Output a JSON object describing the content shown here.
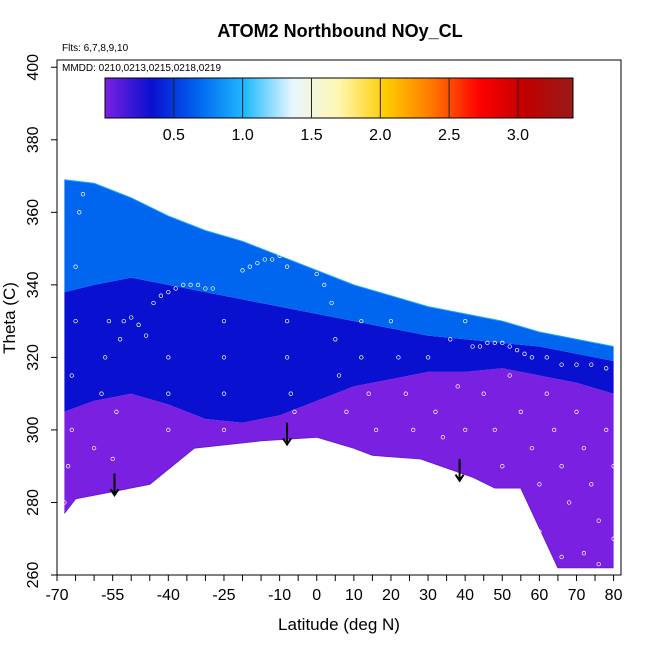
{
  "chart_data": {
    "type": "heatmap",
    "title": "ATOM2 Northbound NOy_CL",
    "flights_note": "Flts: 6,7,8,9,10",
    "dates_note": "MMDD: 0210,0213,0215,0218,0219",
    "xlabel": "Latitude (deg N)",
    "ylabel": "Theta (C)",
    "xlim": [
      -70,
      82
    ],
    "ylim": [
      260,
      402
    ],
    "x_ticks_major": [
      -70,
      -55,
      -40,
      -25,
      -10,
      0,
      10,
      20,
      30,
      40,
      50,
      60,
      70,
      80
    ],
    "x_ticks_major_labels": [
      "-70",
      "-55",
      "-40",
      "-25",
      "-10",
      "0",
      "10",
      "20",
      "30",
      "40",
      "50",
      "60",
      "70",
      "80"
    ],
    "x_ticks_minor": [
      -65,
      -60,
      -50,
      -45,
      -35,
      -30,
      -20,
      -15,
      -5,
      5,
      15,
      25,
      35,
      45,
      55,
      65,
      75
    ],
    "y_ticks": [
      260,
      280,
      300,
      320,
      340,
      360,
      380,
      400
    ],
    "y_tick_labels": [
      "260",
      "280",
      "300",
      "320",
      "340",
      "360",
      "380",
      "400"
    ],
    "colorbar": {
      "range": [
        0.0,
        3.4
      ],
      "ticks": [
        0.5,
        1.0,
        1.5,
        2.0,
        2.5,
        3.0
      ],
      "tick_labels": [
        "0.5",
        "1.0",
        "1.5",
        "2.0",
        "2.5",
        "3.0"
      ],
      "colors": [
        "#7a20e0",
        "#0a10d0",
        "#0066f0",
        "#22bbff",
        "#e8f6ff",
        "#fff7b0",
        "#ffcc00",
        "#ff7700",
        "#ff0000",
        "#c00000",
        "#9a1a1a"
      ]
    },
    "upper_boundary": [
      [
        -68,
        369
      ],
      [
        -60,
        368
      ],
      [
        -50,
        364
      ],
      [
        -40,
        359
      ],
      [
        -30,
        355
      ],
      [
        -20,
        352
      ],
      [
        -10,
        348
      ],
      [
        0,
        344
      ],
      [
        10,
        340
      ],
      [
        20,
        337
      ],
      [
        30,
        334
      ],
      [
        40,
        332
      ],
      [
        50,
        330
      ],
      [
        60,
        327
      ],
      [
        70,
        325
      ],
      [
        80,
        323
      ]
    ],
    "lower_boundary": [
      [
        -68,
        277
      ],
      [
        -65,
        281
      ],
      [
        -55,
        283
      ],
      [
        -45,
        285
      ],
      [
        -33,
        295
      ],
      [
        -15,
        297
      ],
      [
        0,
        298
      ],
      [
        10,
        295
      ],
      [
        15,
        293
      ],
      [
        28,
        292
      ],
      [
        42,
        287
      ],
      [
        48,
        284
      ],
      [
        55,
        284
      ],
      [
        65,
        262
      ],
      [
        72,
        262
      ],
      [
        80,
        262
      ]
    ],
    "regions": [
      {
        "name": "lower",
        "points": [
          [
            -68,
            305
          ],
          [
            -60,
            308
          ],
          [
            -50,
            310
          ],
          [
            -40,
            307
          ],
          [
            -30,
            303
          ],
          [
            -20,
            302
          ],
          [
            -10,
            304
          ],
          [
            0,
            308
          ],
          [
            10,
            312
          ],
          [
            20,
            314
          ],
          [
            30,
            316
          ],
          [
            40,
            316
          ],
          [
            50,
            317
          ],
          [
            60,
            315
          ],
          [
            70,
            313
          ],
          [
            80,
            310
          ],
          [
            80,
            262
          ],
          [
            72,
            262
          ],
          [
            65,
            262
          ],
          [
            55,
            284
          ],
          [
            48,
            284
          ],
          [
            42,
            287
          ],
          [
            28,
            292
          ],
          [
            15,
            293
          ],
          [
            10,
            295
          ],
          [
            0,
            298
          ],
          [
            -15,
            297
          ],
          [
            -33,
            295
          ],
          [
            -45,
            285
          ],
          [
            -55,
            283
          ],
          [
            -65,
            281
          ],
          [
            -68,
            277
          ]
        ],
        "value": 0.08
      },
      {
        "name": "middle",
        "points": [
          [
            -68,
            338
          ],
          [
            -60,
            340
          ],
          [
            -50,
            342
          ],
          [
            -40,
            340
          ],
          [
            -30,
            338
          ],
          [
            -20,
            336
          ],
          [
            -10,
            334
          ],
          [
            0,
            332
          ],
          [
            10,
            330
          ],
          [
            20,
            328
          ],
          [
            30,
            326
          ],
          [
            40,
            325
          ],
          [
            50,
            324
          ],
          [
            60,
            323
          ],
          [
            70,
            321
          ],
          [
            80,
            319
          ],
          [
            80,
            310
          ],
          [
            70,
            313
          ],
          [
            60,
            315
          ],
          [
            50,
            317
          ],
          [
            40,
            316
          ],
          [
            30,
            316
          ],
          [
            20,
            314
          ],
          [
            10,
            312
          ],
          [
            0,
            308
          ],
          [
            -10,
            304
          ],
          [
            -20,
            302
          ],
          [
            -30,
            303
          ],
          [
            -40,
            307
          ],
          [
            -50,
            310
          ],
          [
            -60,
            308
          ],
          [
            -68,
            305
          ]
        ],
        "value": 0.35
      },
      {
        "name": "upper",
        "points": [
          [
            -68,
            369
          ],
          [
            -60,
            368
          ],
          [
            -50,
            364
          ],
          [
            -40,
            359
          ],
          [
            -30,
            355
          ],
          [
            -20,
            352
          ],
          [
            -10,
            348
          ],
          [
            0,
            344
          ],
          [
            10,
            340
          ],
          [
            20,
            337
          ],
          [
            30,
            334
          ],
          [
            40,
            332
          ],
          [
            50,
            330
          ],
          [
            60,
            327
          ],
          [
            70,
            325
          ],
          [
            80,
            323
          ],
          [
            80,
            319
          ],
          [
            70,
            321
          ],
          [
            60,
            323
          ],
          [
            50,
            324
          ],
          [
            40,
            325
          ],
          [
            30,
            326
          ],
          [
            20,
            328
          ],
          [
            10,
            330
          ],
          [
            0,
            332
          ],
          [
            -10,
            334
          ],
          [
            -20,
            336
          ],
          [
            -30,
            338
          ],
          [
            -40,
            340
          ],
          [
            -50,
            342
          ],
          [
            -60,
            340
          ],
          [
            -68,
            338
          ]
        ],
        "value": 0.9
      }
    ],
    "arrows": [
      [
        -54.5,
        288
      ],
      [
        -8,
        302
      ],
      [
        38.5,
        292
      ]
    ],
    "sample_points": [
      [
        -68,
        280
      ],
      [
        -67,
        290
      ],
      [
        -66,
        300
      ],
      [
        -66,
        315
      ],
      [
        -65,
        330
      ],
      [
        -65,
        345
      ],
      [
        -64,
        360
      ],
      [
        -63,
        365
      ],
      [
        -60,
        295
      ],
      [
        -58,
        310
      ],
      [
        -57,
        320
      ],
      [
        -56,
        330
      ],
      [
        -55,
        292
      ],
      [
        -54,
        305
      ],
      [
        -53,
        325
      ],
      [
        -52,
        330
      ],
      [
        -50,
        331
      ],
      [
        -48,
        329
      ],
      [
        -46,
        326
      ],
      [
        -44,
        335
      ],
      [
        -42,
        337
      ],
      [
        -40,
        338
      ],
      [
        -38,
        339
      ],
      [
        -36,
        340
      ],
      [
        -34,
        340
      ],
      [
        -32,
        340
      ],
      [
        -30,
        339
      ],
      [
        -28,
        339
      ],
      [
        -40,
        300
      ],
      [
        -40,
        310
      ],
      [
        -40,
        320
      ],
      [
        -25,
        300
      ],
      [
        -25,
        310
      ],
      [
        -25,
        320
      ],
      [
        -25,
        330
      ],
      [
        -20,
        344
      ],
      [
        -18,
        345
      ],
      [
        -16,
        346
      ],
      [
        -14,
        347
      ],
      [
        -12,
        347
      ],
      [
        -10,
        348
      ],
      [
        -8,
        345
      ],
      [
        -8,
        330
      ],
      [
        -8,
        320
      ],
      [
        -7,
        310
      ],
      [
        -6,
        305
      ],
      [
        0,
        343
      ],
      [
        2,
        340
      ],
      [
        4,
        335
      ],
      [
        5,
        325
      ],
      [
        6,
        315
      ],
      [
        8,
        305
      ],
      [
        10,
        341
      ],
      [
        12,
        342
      ],
      [
        14,
        342
      ],
      [
        16,
        342
      ],
      [
        18,
        342
      ],
      [
        20,
        341
      ],
      [
        12,
        330
      ],
      [
        12,
        320
      ],
      [
        14,
        310
      ],
      [
        16,
        300
      ],
      [
        20,
        330
      ],
      [
        22,
        320
      ],
      [
        24,
        310
      ],
      [
        26,
        300
      ],
      [
        30,
        335
      ],
      [
        30,
        320
      ],
      [
        32,
        305
      ],
      [
        34,
        298
      ],
      [
        36,
        325
      ],
      [
        38,
        312
      ],
      [
        40,
        300
      ],
      [
        40,
        330
      ],
      [
        42,
        323
      ],
      [
        44,
        323
      ],
      [
        46,
        324
      ],
      [
        48,
        324
      ],
      [
        50,
        324
      ],
      [
        52,
        323
      ],
      [
        54,
        322
      ],
      [
        56,
        321
      ],
      [
        58,
        320
      ],
      [
        45,
        310
      ],
      [
        48,
        300
      ],
      [
        50,
        290
      ],
      [
        52,
        315
      ],
      [
        55,
        305
      ],
      [
        58,
        295
      ],
      [
        60,
        285
      ],
      [
        62,
        310
      ],
      [
        64,
        300
      ],
      [
        66,
        290
      ],
      [
        68,
        280
      ],
      [
        70,
        305
      ],
      [
        72,
        295
      ],
      [
        74,
        285
      ],
      [
        76,
        275
      ],
      [
        78,
        300
      ],
      [
        80,
        290
      ],
      [
        80,
        270
      ],
      [
        62,
        320
      ],
      [
        66,
        318
      ],
      [
        70,
        318
      ],
      [
        74,
        318
      ],
      [
        78,
        317
      ],
      [
        60,
        272
      ],
      [
        66,
        265
      ],
      [
        72,
        266
      ],
      [
        76,
        263
      ]
    ]
  }
}
